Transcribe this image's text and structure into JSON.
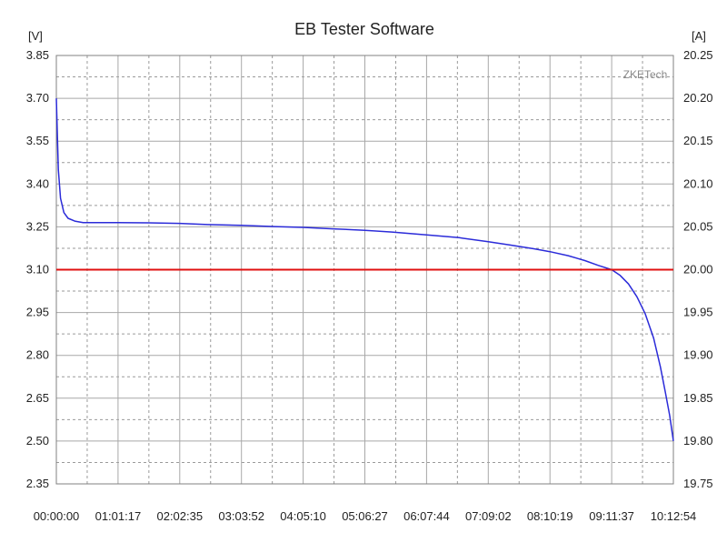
{
  "chart_data": {
    "type": "line",
    "title": "EB Tester Software",
    "watermark": "ZKETech",
    "left_unit": "[V]",
    "right_unit": "[A]",
    "x_tick_labels": [
      "00:00:00",
      "01:01:17",
      "02:02:35",
      "03:03:52",
      "04:05:10",
      "05:06:27",
      "06:07:44",
      "07:09:02",
      "08:10:19",
      "09:11:37",
      "10:12:54"
    ],
    "y_left_ticks": [
      "3.85",
      "3.70",
      "3.55",
      "3.40",
      "3.25",
      "3.10",
      "2.95",
      "2.80",
      "2.65",
      "2.50",
      "2.35"
    ],
    "y_right_ticks": [
      "20.25",
      "20.20",
      "20.15",
      "20.10",
      "20.05",
      "20.00",
      "19.95",
      "19.90",
      "19.85",
      "19.80",
      "19.75"
    ],
    "ylim_left": [
      2.35,
      3.85
    ],
    "ylim_right": [
      19.75,
      20.25
    ],
    "xlim_seconds": [
      0,
      36774
    ],
    "grid": true,
    "colors": {
      "voltage": "#2b2bd9",
      "current": "#e01010",
      "grid_major": "#a8a8a8",
      "grid_minor": "#9a9a9a",
      "frame": "#808080"
    },
    "series": [
      {
        "axis": "left",
        "x_seconds": [
          0,
          120,
          250,
          450,
          700,
          1100,
          1600,
          2200,
          3677,
          5500,
          7355,
          9000,
          11032,
          13000,
          14710,
          16500,
          18387,
          20000,
          22064,
          24000,
          25742,
          27000,
          28500,
          29419,
          30500,
          31500,
          32300,
          33097,
          33600,
          34100,
          34600,
          35100,
          35600,
          36000,
          36300,
          36550,
          36774
        ],
        "y_values": [
          3.7,
          3.45,
          3.35,
          3.3,
          3.28,
          3.27,
          3.265,
          3.265,
          3.265,
          3.264,
          3.262,
          3.258,
          3.255,
          3.251,
          3.248,
          3.243,
          3.238,
          3.232,
          3.222,
          3.212,
          3.198,
          3.187,
          3.173,
          3.163,
          3.149,
          3.132,
          3.115,
          3.1,
          3.08,
          3.05,
          3.005,
          2.945,
          2.86,
          2.76,
          2.67,
          2.59,
          2.5
        ]
      },
      {
        "axis": "right",
        "x_seconds": [
          0,
          36774
        ],
        "y_values": [
          20.0,
          20.0
        ]
      }
    ]
  }
}
